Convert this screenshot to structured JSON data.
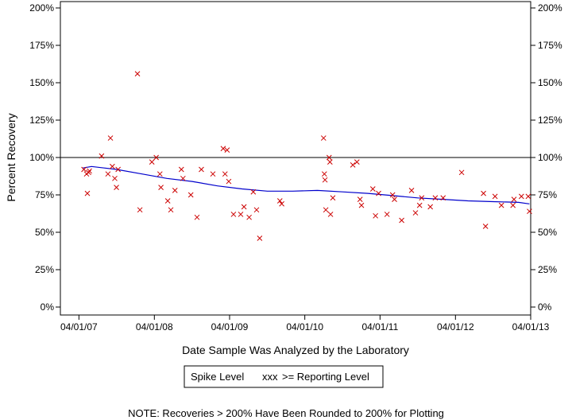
{
  "chart_data": {
    "type": "scatter",
    "xlabel": "Date Sample Was Analyzed by the Laboratory",
    "ylabel": "Percent Recovery",
    "xlim": [
      "2007-01-01",
      "2013-04-01"
    ],
    "ylim": [
      0,
      200
    ],
    "x_ticks": [
      "04/01/07",
      "04/01/08",
      "04/01/09",
      "04/01/10",
      "04/01/11",
      "04/01/12",
      "04/01/13"
    ],
    "x_tick_dates": [
      "2007-04-01",
      "2008-04-01",
      "2009-04-01",
      "2010-04-01",
      "2011-04-01",
      "2012-04-01",
      "2013-04-01"
    ],
    "y_ticks": [
      {
        "value": 0,
        "label": "0%"
      },
      {
        "value": 25,
        "label": "25%"
      },
      {
        "value": 50,
        "label": "50%"
      },
      {
        "value": 75,
        "label": "75%"
      },
      {
        "value": 100,
        "label": "100%"
      },
      {
        "value": 125,
        "label": "125%"
      },
      {
        "value": 150,
        "label": "150%"
      },
      {
        "value": 175,
        "label": "175%"
      },
      {
        "value": 200,
        "label": "200%"
      }
    ],
    "reference_line": 100,
    "series": [
      {
        "name": ">= Reporting Level",
        "color": "#cc0000",
        "marker": "x",
        "points": [
          {
            "x": "2007-04-25",
            "y": 92
          },
          {
            "x": "2007-05-08",
            "y": 89
          },
          {
            "x": "2007-05-12",
            "y": 76
          },
          {
            "x": "2007-05-18",
            "y": 90
          },
          {
            "x": "2007-05-22",
            "y": 91
          },
          {
            "x": "2007-07-20",
            "y": 101
          },
          {
            "x": "2007-08-20",
            "y": 89
          },
          {
            "x": "2007-09-01",
            "y": 113
          },
          {
            "x": "2007-09-10",
            "y": 94
          },
          {
            "x": "2007-09-22",
            "y": 86
          },
          {
            "x": "2007-09-30",
            "y": 80
          },
          {
            "x": "2007-10-08",
            "y": 92
          },
          {
            "x": "2008-01-10",
            "y": 156
          },
          {
            "x": "2008-01-22",
            "y": 65
          },
          {
            "x": "2008-03-20",
            "y": 97
          },
          {
            "x": "2008-04-10",
            "y": 100
          },
          {
            "x": "2008-04-28",
            "y": 89
          },
          {
            "x": "2008-05-03",
            "y": 80
          },
          {
            "x": "2008-06-05",
            "y": 71
          },
          {
            "x": "2008-06-20",
            "y": 65
          },
          {
            "x": "2008-07-10",
            "y": 78
          },
          {
            "x": "2008-08-10",
            "y": 92
          },
          {
            "x": "2008-08-18",
            "y": 86
          },
          {
            "x": "2008-09-25",
            "y": 75
          },
          {
            "x": "2008-10-25",
            "y": 60
          },
          {
            "x": "2008-11-15",
            "y": 92
          },
          {
            "x": "2009-01-10",
            "y": 89
          },
          {
            "x": "2009-03-01",
            "y": 106
          },
          {
            "x": "2009-03-10",
            "y": 89
          },
          {
            "x": "2009-03-20",
            "y": 105
          },
          {
            "x": "2009-03-28",
            "y": 84
          },
          {
            "x": "2009-04-20",
            "y": 62
          },
          {
            "x": "2009-05-25",
            "y": 62
          },
          {
            "x": "2009-06-10",
            "y": 67
          },
          {
            "x": "2009-07-05",
            "y": 60
          },
          {
            "x": "2009-07-25",
            "y": 77
          },
          {
            "x": "2009-08-10",
            "y": 65
          },
          {
            "x": "2009-08-25",
            "y": 46
          },
          {
            "x": "2009-12-01",
            "y": 71
          },
          {
            "x": "2009-12-10",
            "y": 69
          },
          {
            "x": "2010-07-01",
            "y": 113
          },
          {
            "x": "2010-07-05",
            "y": 89
          },
          {
            "x": "2010-07-08",
            "y": 85
          },
          {
            "x": "2010-07-12",
            "y": 65
          },
          {
            "x": "2010-07-28",
            "y": 100
          },
          {
            "x": "2010-08-01",
            "y": 97
          },
          {
            "x": "2010-08-04",
            "y": 62
          },
          {
            "x": "2010-08-15",
            "y": 73
          },
          {
            "x": "2010-11-20",
            "y": 95
          },
          {
            "x": "2010-12-10",
            "y": 97
          },
          {
            "x": "2010-12-25",
            "y": 72
          },
          {
            "x": "2011-01-01",
            "y": 68
          },
          {
            "x": "2011-02-25",
            "y": 79
          },
          {
            "x": "2011-03-10",
            "y": 61
          },
          {
            "x": "2011-03-25",
            "y": 76
          },
          {
            "x": "2011-05-05",
            "y": 62
          },
          {
            "x": "2011-06-01",
            "y": 75
          },
          {
            "x": "2011-06-10",
            "y": 72
          },
          {
            "x": "2011-07-15",
            "y": 58
          },
          {
            "x": "2011-09-01",
            "y": 78
          },
          {
            "x": "2011-09-20",
            "y": 63
          },
          {
            "x": "2011-10-10",
            "y": 68
          },
          {
            "x": "2011-10-20",
            "y": 73
          },
          {
            "x": "2011-12-01",
            "y": 67
          },
          {
            "x": "2011-12-25",
            "y": 73
          },
          {
            "x": "2012-02-01",
            "y": 73
          },
          {
            "x": "2012-05-01",
            "y": 90
          },
          {
            "x": "2012-08-15",
            "y": 76
          },
          {
            "x": "2012-08-25",
            "y": 54
          },
          {
            "x": "2012-10-10",
            "y": 74
          },
          {
            "x": "2012-11-10",
            "y": 68
          },
          {
            "x": "2013-01-05",
            "y": 68
          },
          {
            "x": "2013-01-10",
            "y": 72
          },
          {
            "x": "2013-02-15",
            "y": 74
          },
          {
            "x": "2013-03-20",
            "y": 74
          },
          {
            "x": "2013-03-26",
            "y": 64
          }
        ]
      },
      {
        "name": "Spike Level",
        "color": "#0000cc",
        "type": "line",
        "points": [
          {
            "x": "2007-04-20",
            "y": 93
          },
          {
            "x": "2007-06-01",
            "y": 94
          },
          {
            "x": "2007-10-01",
            "y": 92
          },
          {
            "x": "2008-02-01",
            "y": 89
          },
          {
            "x": "2008-06-01",
            "y": 86
          },
          {
            "x": "2008-10-01",
            "y": 84
          },
          {
            "x": "2009-02-01",
            "y": 81
          },
          {
            "x": "2009-06-01",
            "y": 79
          },
          {
            "x": "2009-10-01",
            "y": 77.5
          },
          {
            "x": "2010-02-01",
            "y": 77.5
          },
          {
            "x": "2010-06-01",
            "y": 78
          },
          {
            "x": "2010-10-01",
            "y": 77
          },
          {
            "x": "2011-02-01",
            "y": 76
          },
          {
            "x": "2011-06-01",
            "y": 74.5
          },
          {
            "x": "2011-10-01",
            "y": 73
          },
          {
            "x": "2012-02-01",
            "y": 72
          },
          {
            "x": "2012-06-01",
            "y": 71
          },
          {
            "x": "2012-10-01",
            "y": 70.5
          },
          {
            "x": "2013-02-01",
            "y": 70
          },
          {
            "x": "2013-03-26",
            "y": 69
          }
        ]
      }
    ],
    "legend": {
      "position": "bottom",
      "spike_label": "Spike Level",
      "marker_symbol": "xxx",
      "reporting_label": ">= Reporting Level"
    }
  },
  "note": "NOTE: Recoveries > 200% Have Been Rounded to 200% for Plotting"
}
